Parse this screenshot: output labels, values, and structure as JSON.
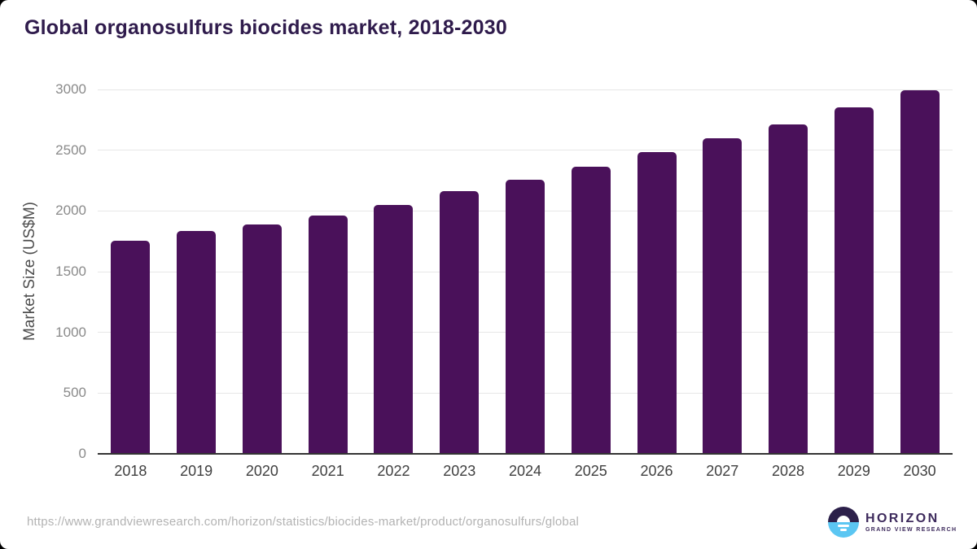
{
  "header": {
    "title": "Global organosulfurs biocides market, 2018-2030"
  },
  "chart_data": {
    "type": "bar",
    "title": "Global organosulfurs biocides market, 2018-2030",
    "categories": [
      "2018",
      "2019",
      "2020",
      "2021",
      "2022",
      "2023",
      "2024",
      "2025",
      "2026",
      "2027",
      "2028",
      "2029",
      "2030"
    ],
    "values": [
      1755,
      1835,
      1890,
      1960,
      2050,
      2160,
      2260,
      2365,
      2485,
      2595,
      2715,
      2850,
      2995
    ],
    "xlabel": "",
    "ylabel": "Market Size (US$M)",
    "ylim": [
      0,
      3000
    ],
    "yticks": [
      0,
      500,
      1000,
      1500,
      2000,
      2500,
      3000
    ],
    "grid": true,
    "legend": null,
    "bar_color": "#4a115a"
  },
  "footer": {
    "source_url": "https://www.grandviewresearch.com/horizon/statistics/biocides-market/product/organosulfurs/global"
  },
  "branding": {
    "logo_name": "HORIZON",
    "logo_subtext": "GRAND VIEW RESEARCH"
  },
  "colors": {
    "title_text": "#2f1b4c",
    "bar": "#4a115a",
    "gridline": "#e7e7e7",
    "axis_line": "#333333",
    "ytick_text": "#8a8a8a",
    "xtick_text": "#3f3f3f",
    "ylabel_text": "#4d4d4d",
    "url_text": "#b3b3b3",
    "logo_text": "#3d2a5c",
    "logo_circle_top": "#2c204a",
    "logo_circle_bottom": "#5bc6f2"
  }
}
